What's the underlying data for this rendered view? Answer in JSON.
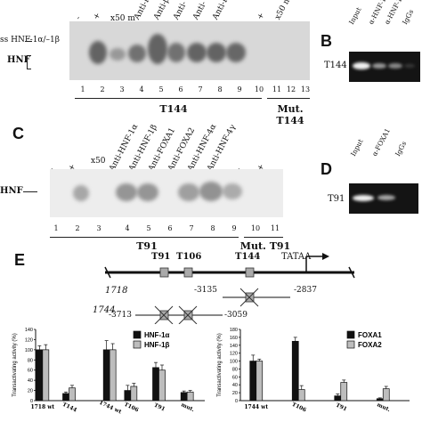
{
  "panel_a": {
    "side_label_top": "ss HNF-1α/–1β",
    "side_label_hnf": "HNF",
    "lanes": [
      "-",
      "+",
      "x50 m",
      "Anti-HNF",
      "Anti-β",
      "Anti-",
      "Anti-",
      "Anti-F"
    ],
    "lane_extra": [
      "+",
      "x50 m"
    ],
    "lane_numbers": [
      "1",
      "2",
      "3",
      "4",
      "5",
      "6",
      "7",
      "8",
      "9",
      "10",
      "11",
      "12",
      "13"
    ],
    "group_label": "T144",
    "mut_label": "Mut. T144"
  },
  "panel_b": {
    "letter": "B",
    "lanes": [
      "Input",
      "α-HNF-1α",
      "α-HNF-1β",
      "IgGs"
    ],
    "row_label": "T144"
  },
  "panel_c": {
    "letter": "C",
    "side_label": "HNF",
    "lanes": [
      "-",
      "+",
      "x50",
      "Anti-HNF-1α",
      "Anti-HNF-1β",
      "Anti-FOXA1",
      "Anti-FOXA2",
      "Anti-HNF-4α",
      "Anti-HNF-4γ",
      "-",
      "+"
    ],
    "lane_numbers": [
      "1",
      "2",
      "3",
      "4",
      "5",
      "6",
      "7",
      "8",
      "9",
      "10",
      "11"
    ],
    "group_label": "T91",
    "mut_label": "Mut. T91"
  },
  "panel_d": {
    "letter": "D",
    "lanes": [
      "Input",
      "α-FOXA1",
      "IgGs"
    ],
    "row_label": "T91"
  },
  "panel_e": {
    "letter": "E",
    "sites": [
      "T91",
      "T106",
      "T144"
    ],
    "tata": "TATAA",
    "construct_1718": "1718",
    "construct_1744": "1744",
    "pos_1718_left": "-3135",
    "pos_1718_right": "-2837",
    "pos_1744_left": "-3713",
    "pos_1744_right": "-3059"
  },
  "chart_data": [
    {
      "type": "bar",
      "ylabel": "Transactivating activity (%)",
      "ylim": [
        0,
        140
      ],
      "yticks": [
        "0",
        "20",
        "40",
        "60",
        "80",
        "100",
        "120",
        "140"
      ],
      "categories": [
        "1718 wt",
        "T144",
        "1744 wt",
        "T106",
        "T91",
        "mut."
      ],
      "series": [
        {
          "name": "HNF-1α",
          "values": [
            100,
            14,
            100,
            20,
            65,
            16
          ],
          "errors": [
            8,
            3,
            18,
            10,
            10,
            3
          ]
        },
        {
          "name": "HNF-1β",
          "values": [
            100,
            25,
            100,
            28,
            60,
            17
          ],
          "errors": [
            10,
            5,
            12,
            6,
            10,
            3
          ]
        }
      ],
      "colors": {
        "HNF-1α": "#111111",
        "HNF-1β": "#bdbdbd"
      },
      "legend": "top-right"
    },
    {
      "type": "bar",
      "ylabel": "Transactivating activity (%)",
      "ylim": [
        0,
        180
      ],
      "yticks": [
        "0",
        "20",
        "40",
        "60",
        "80",
        "100",
        "120",
        "140",
        "160",
        "180"
      ],
      "categories": [
        "1744 wt",
        "T106",
        "T91",
        "mut."
      ],
      "series": [
        {
          "name": "FOXA1",
          "values": [
            100,
            150,
            12,
            5
          ],
          "errors": [
            15,
            10,
            5,
            2
          ]
        },
        {
          "name": "FOXA2",
          "values": [
            100,
            28,
            46,
            30
          ],
          "errors": [
            5,
            10,
            6,
            6
          ]
        }
      ],
      "colors": {
        "FOXA1": "#111111",
        "FOXA2": "#bdbdbd"
      },
      "legend": "top-right"
    }
  ]
}
